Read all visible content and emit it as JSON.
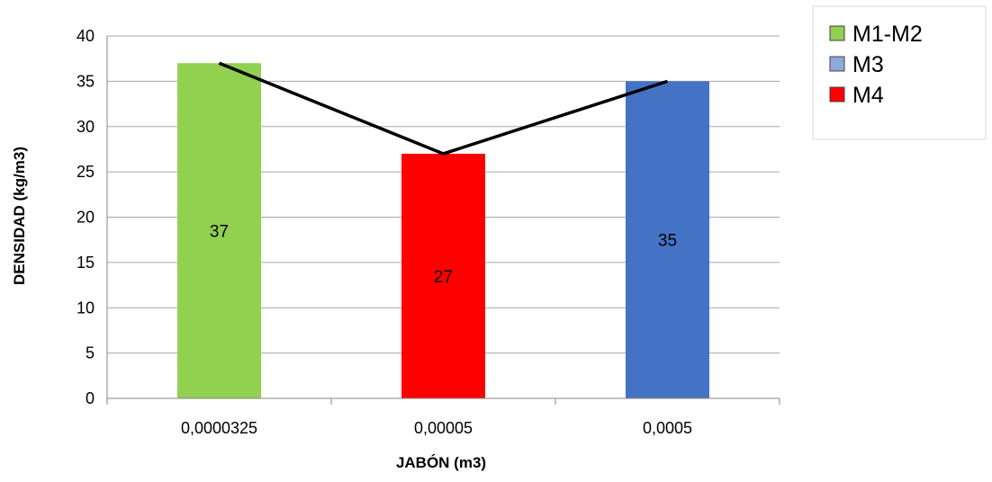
{
  "chart_data": {
    "type": "bar",
    "categories": [
      "0,0000325",
      "0,00005",
      "0,0005"
    ],
    "values": [
      37,
      27,
      35
    ],
    "data_labels": [
      "37",
      "27",
      "35"
    ],
    "bar_colors": [
      "#92d050",
      "#ff0000",
      "#4472c4"
    ],
    "line_overlay": {
      "values": [
        37,
        27,
        35
      ],
      "color": "#000000"
    },
    "series": [
      {
        "name": "M1-M2",
        "color": "#92d050"
      },
      {
        "name": "M3",
        "color": "#8eaadb"
      },
      {
        "name": "M4",
        "color": "#ff0000"
      }
    ],
    "xlabel": "JABÓN (m3)",
    "ylabel": "DENSIDAD (kg/m3)",
    "ylim": [
      0,
      40
    ],
    "yticks": [
      "0",
      "5",
      "10",
      "15",
      "20",
      "25",
      "30",
      "35",
      "40"
    ],
    "grid": true,
    "legend_position": "top-right"
  }
}
